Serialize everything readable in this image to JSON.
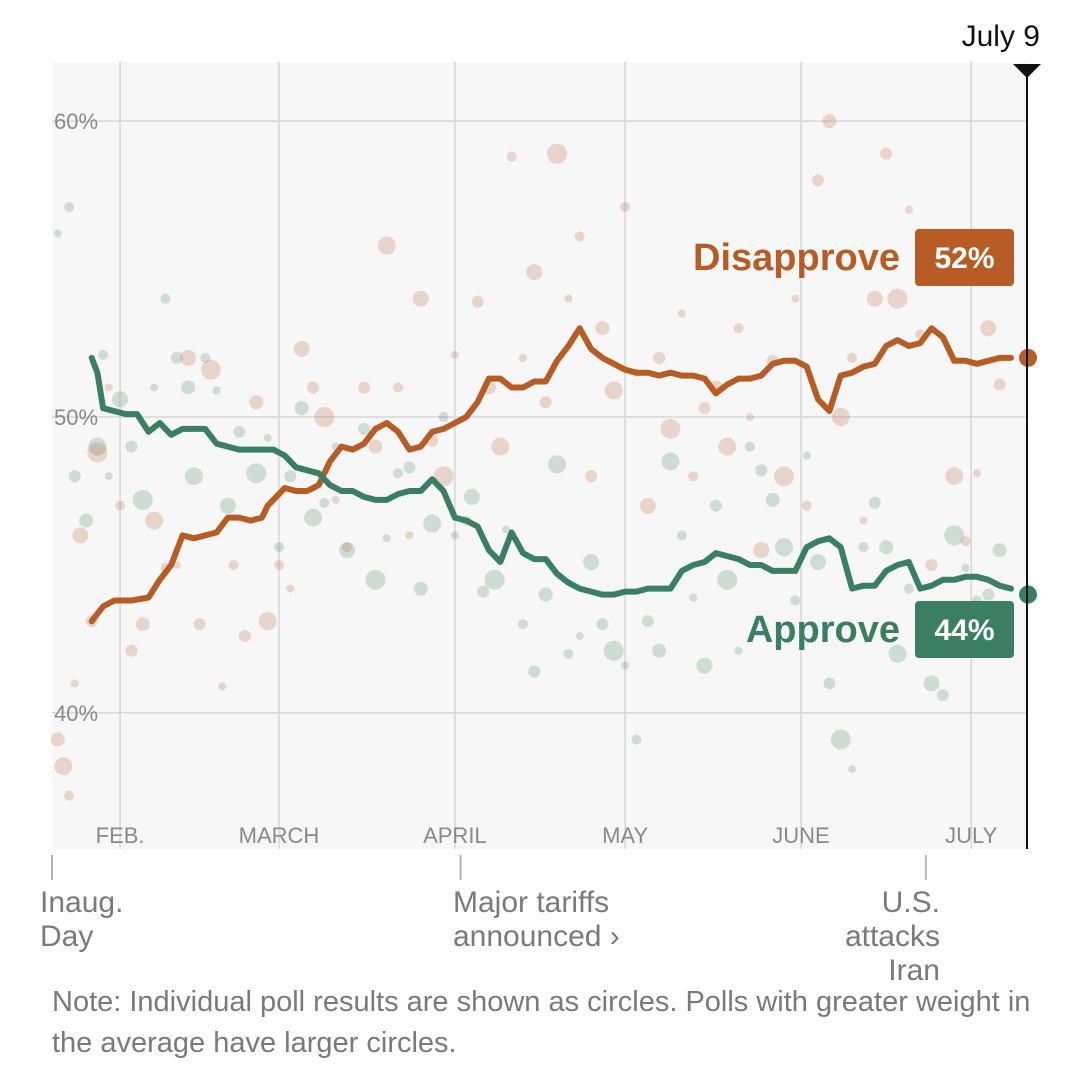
{
  "chart_data": {
    "type": "line",
    "date_marker": "July 9",
    "y_ticks": [
      "60%",
      "50%",
      "40%"
    ],
    "y_tick_values": [
      60,
      50,
      40
    ],
    "ylim": [
      35.4,
      62
    ],
    "x_tick_labels": [
      "FEB.",
      "MARCH",
      "APRIL",
      "MAY",
      "JUNE",
      "JULY"
    ],
    "x_tick_days": [
      12,
      40,
      71,
      101,
      132,
      162
    ],
    "x_range_days": [
      0,
      172
    ],
    "grid": true,
    "colors": {
      "approve": "#3a7f61",
      "disapprove": "#b85c26"
    },
    "series": [
      {
        "name": "Disapprove",
        "key": "disapprove",
        "end_value": 52,
        "label": "52%",
        "points": [
          [
            7,
            43.1
          ],
          [
            9,
            43.6
          ],
          [
            11,
            43.8
          ],
          [
            14,
            43.8
          ],
          [
            17,
            43.9
          ],
          [
            19,
            44.5
          ],
          [
            21,
            45.0
          ],
          [
            23,
            46.0
          ],
          [
            25,
            45.9
          ],
          [
            27,
            46.0
          ],
          [
            29,
            46.1
          ],
          [
            31,
            46.6
          ],
          [
            33,
            46.6
          ],
          [
            35,
            46.5
          ],
          [
            37,
            46.6
          ],
          [
            38,
            47.0
          ],
          [
            41,
            47.6
          ],
          [
            43,
            47.5
          ],
          [
            45,
            47.5
          ],
          [
            47,
            47.7
          ],
          [
            49,
            48.5
          ],
          [
            51,
            49.0
          ],
          [
            53,
            48.9
          ],
          [
            55,
            49.1
          ],
          [
            57,
            49.6
          ],
          [
            59,
            49.8
          ],
          [
            61,
            49.5
          ],
          [
            63,
            48.9
          ],
          [
            65,
            49.0
          ],
          [
            67,
            49.5
          ],
          [
            69,
            49.6
          ],
          [
            71,
            49.8
          ],
          [
            73,
            50.0
          ],
          [
            75,
            50.5
          ],
          [
            77,
            51.3
          ],
          [
            79,
            51.3
          ],
          [
            81,
            51.0
          ],
          [
            83,
            51.0
          ],
          [
            85,
            51.2
          ],
          [
            87,
            51.2
          ],
          [
            89,
            51.9
          ],
          [
            91,
            52.4
          ],
          [
            93,
            53.0
          ],
          [
            95,
            52.3
          ],
          [
            97,
            52.0
          ],
          [
            99,
            51.8
          ],
          [
            101,
            51.6
          ],
          [
            103,
            51.5
          ],
          [
            105,
            51.5
          ],
          [
            107,
            51.4
          ],
          [
            109,
            51.5
          ],
          [
            111,
            51.4
          ],
          [
            113,
            51.4
          ],
          [
            115,
            51.3
          ],
          [
            117,
            50.8
          ],
          [
            119,
            51.1
          ],
          [
            121,
            51.3
          ],
          [
            123,
            51.3
          ],
          [
            125,
            51.4
          ],
          [
            127,
            51.8
          ],
          [
            129,
            51.9
          ],
          [
            131,
            51.9
          ],
          [
            133,
            51.7
          ],
          [
            135,
            50.6
          ],
          [
            137,
            50.2
          ],
          [
            139,
            51.4
          ],
          [
            141,
            51.5
          ],
          [
            143,
            51.7
          ],
          [
            145,
            51.8
          ],
          [
            147,
            52.4
          ],
          [
            149,
            52.6
          ],
          [
            151,
            52.4
          ],
          [
            153,
            52.5
          ],
          [
            155,
            53.0
          ],
          [
            157,
            52.7
          ],
          [
            159,
            51.9
          ],
          [
            161,
            51.9
          ],
          [
            163,
            51.8
          ],
          [
            165,
            51.9
          ],
          [
            167,
            52.0
          ],
          [
            169,
            52.0
          ]
        ]
      },
      {
        "name": "Approve",
        "key": "approve",
        "end_value": 44,
        "label": "44%",
        "points": [
          [
            7,
            52.0
          ],
          [
            8,
            51.5
          ],
          [
            9,
            50.3
          ],
          [
            11,
            50.2
          ],
          [
            13,
            50.1
          ],
          [
            15,
            50.1
          ],
          [
            17,
            49.5
          ],
          [
            19,
            49.8
          ],
          [
            21,
            49.4
          ],
          [
            23,
            49.6
          ],
          [
            25,
            49.6
          ],
          [
            27,
            49.6
          ],
          [
            29,
            49.1
          ],
          [
            31,
            49.0
          ],
          [
            33,
            48.9
          ],
          [
            35,
            48.9
          ],
          [
            37,
            48.9
          ],
          [
            39,
            48.9
          ],
          [
            41,
            48.7
          ],
          [
            43,
            48.3
          ],
          [
            45,
            48.2
          ],
          [
            47,
            48.1
          ],
          [
            49,
            47.7
          ],
          [
            51,
            47.5
          ],
          [
            53,
            47.5
          ],
          [
            55,
            47.3
          ],
          [
            57,
            47.2
          ],
          [
            59,
            47.2
          ],
          [
            61,
            47.4
          ],
          [
            63,
            47.5
          ],
          [
            65,
            47.5
          ],
          [
            67,
            47.9
          ],
          [
            69,
            47.5
          ],
          [
            71,
            46.6
          ],
          [
            73,
            46.5
          ],
          [
            75,
            46.3
          ],
          [
            77,
            45.5
          ],
          [
            79,
            45.1
          ],
          [
            81,
            46.1
          ],
          [
            83,
            45.4
          ],
          [
            85,
            45.2
          ],
          [
            87,
            45.2
          ],
          [
            89,
            44.7
          ],
          [
            91,
            44.4
          ],
          [
            93,
            44.2
          ],
          [
            95,
            44.1
          ],
          [
            97,
            44.0
          ],
          [
            99,
            44.0
          ],
          [
            101,
            44.1
          ],
          [
            103,
            44.1
          ],
          [
            105,
            44.2
          ],
          [
            107,
            44.2
          ],
          [
            109,
            44.2
          ],
          [
            111,
            44.8
          ],
          [
            113,
            45.0
          ],
          [
            115,
            45.1
          ],
          [
            117,
            45.4
          ],
          [
            119,
            45.3
          ],
          [
            121,
            45.2
          ],
          [
            123,
            45.0
          ],
          [
            125,
            45.0
          ],
          [
            127,
            44.8
          ],
          [
            129,
            44.8
          ],
          [
            131,
            44.8
          ],
          [
            133,
            45.6
          ],
          [
            135,
            45.8
          ],
          [
            137,
            45.9
          ],
          [
            139,
            45.6
          ],
          [
            141,
            44.2
          ],
          [
            143,
            44.3
          ],
          [
            145,
            44.3
          ],
          [
            147,
            44.8
          ],
          [
            149,
            45.0
          ],
          [
            151,
            45.1
          ],
          [
            153,
            44.2
          ],
          [
            155,
            44.3
          ],
          [
            157,
            44.5
          ],
          [
            159,
            44.5
          ],
          [
            161,
            44.6
          ],
          [
            163,
            44.6
          ],
          [
            165,
            44.5
          ],
          [
            167,
            44.3
          ],
          [
            169,
            44.2
          ]
        ]
      }
    ],
    "approve_polls": [
      [
        1,
        56.2
      ],
      [
        3,
        57.1
      ],
      [
        4,
        48.0
      ],
      [
        6,
        46.5
      ],
      [
        8,
        49.0
      ],
      [
        9,
        52.1
      ],
      [
        10,
        48.0
      ],
      [
        12,
        50.6
      ],
      [
        14,
        49.0
      ],
      [
        16,
        47.2
      ],
      [
        18,
        51.0
      ],
      [
        20,
        54.0
      ],
      [
        22,
        52.0
      ],
      [
        24,
        51.0
      ],
      [
        25,
        48.0
      ],
      [
        27,
        52.0
      ],
      [
        29,
        50.9
      ],
      [
        31,
        47.0
      ],
      [
        33,
        49.5
      ],
      [
        36,
        48.1
      ],
      [
        38,
        49.3
      ],
      [
        40,
        45.6
      ],
      [
        42,
        48.0
      ],
      [
        44,
        50.3
      ],
      [
        46,
        46.6
      ],
      [
        48,
        47.1
      ],
      [
        50,
        49.0
      ],
      [
        52,
        45.5
      ],
      [
        55,
        49.6
      ],
      [
        57,
        44.5
      ],
      [
        59,
        45.9
      ],
      [
        61,
        48.1
      ],
      [
        63,
        48.3
      ],
      [
        65,
        44.2
      ],
      [
        67,
        46.4
      ],
      [
        69,
        50.0
      ],
      [
        71,
        46.0
      ],
      [
        74,
        47.3
      ],
      [
        76,
        44.1
      ],
      [
        78,
        44.5
      ],
      [
        80,
        46.2
      ],
      [
        83,
        43.0
      ],
      [
        85,
        41.4
      ],
      [
        87,
        44.0
      ],
      [
        89,
        48.4
      ],
      [
        91,
        42.0
      ],
      [
        93,
        42.6
      ],
      [
        95,
        45.1
      ],
      [
        97,
        43.0
      ],
      [
        99,
        42.1
      ],
      [
        101,
        41.6
      ],
      [
        103,
        39.1
      ],
      [
        105,
        43.1
      ],
      [
        107,
        42.1
      ],
      [
        109,
        48.5
      ],
      [
        111,
        46.0
      ],
      [
        113,
        43.9
      ],
      [
        115,
        41.6
      ],
      [
        117,
        47.0
      ],
      [
        119,
        44.5
      ],
      [
        121,
        42.1
      ],
      [
        123,
        49.0
      ],
      [
        125,
        48.2
      ],
      [
        127,
        47.2
      ],
      [
        129,
        45.6
      ],
      [
        131,
        43.8
      ],
      [
        133,
        48.7
      ],
      [
        135,
        45.1
      ],
      [
        137,
        41.0
      ],
      [
        139,
        39.1
      ],
      [
        141,
        38.1
      ],
      [
        143,
        45.6
      ],
      [
        145,
        47.1
      ],
      [
        147,
        45.6
      ],
      [
        149,
        42.0
      ],
      [
        151,
        44.2
      ],
      [
        153,
        43.0
      ],
      [
        155,
        41.0
      ],
      [
        157,
        40.6
      ],
      [
        159,
        46.0
      ],
      [
        161,
        44.9
      ],
      [
        163,
        43.8
      ],
      [
        165,
        44.0
      ],
      [
        167,
        45.5
      ]
    ],
    "disapprove_polls": [
      [
        1,
        39.1
      ],
      [
        2,
        38.2
      ],
      [
        3,
        37.2
      ],
      [
        4,
        41.0
      ],
      [
        5,
        46.0
      ],
      [
        7,
        43.1
      ],
      [
        8,
        48.8
      ],
      [
        10,
        51.0
      ],
      [
        12,
        47.0
      ],
      [
        14,
        42.1
      ],
      [
        16,
        43.0
      ],
      [
        18,
        46.5
      ],
      [
        20,
        44.9
      ],
      [
        22,
        45.0
      ],
      [
        24,
        52.0
      ],
      [
        26,
        43.0
      ],
      [
        28,
        51.6
      ],
      [
        30,
        40.9
      ],
      [
        32,
        45.0
      ],
      [
        34,
        42.6
      ],
      [
        36,
        50.5
      ],
      [
        38,
        43.1
      ],
      [
        40,
        45.0
      ],
      [
        42,
        44.2
      ],
      [
        44,
        52.3
      ],
      [
        46,
        51.0
      ],
      [
        48,
        50.0
      ],
      [
        50,
        47.2
      ],
      [
        52,
        45.6
      ],
      [
        55,
        51.0
      ],
      [
        57,
        49.0
      ],
      [
        59,
        55.8
      ],
      [
        61,
        51.0
      ],
      [
        63,
        46.0
      ],
      [
        65,
        54.0
      ],
      [
        67,
        49.2
      ],
      [
        69,
        48.0
      ],
      [
        71,
        52.1
      ],
      [
        73,
        46.5
      ],
      [
        75,
        53.9
      ],
      [
        77,
        51.0
      ],
      [
        79,
        49.0
      ],
      [
        81,
        58.8
      ],
      [
        83,
        52.0
      ],
      [
        85,
        54.9
      ],
      [
        87,
        50.5
      ],
      [
        89,
        58.9
      ],
      [
        91,
        54.0
      ],
      [
        93,
        56.1
      ],
      [
        95,
        48.0
      ],
      [
        97,
        53.0
      ],
      [
        99,
        50.9
      ],
      [
        101,
        57.1
      ],
      [
        103,
        51.5
      ],
      [
        105,
        47.0
      ],
      [
        107,
        52.0
      ],
      [
        109,
        49.6
      ],
      [
        111,
        53.5
      ],
      [
        113,
        48.0
      ],
      [
        115,
        50.3
      ],
      [
        117,
        51.0
      ],
      [
        119,
        49.0
      ],
      [
        121,
        53.0
      ],
      [
        123,
        50.0
      ],
      [
        125,
        45.5
      ],
      [
        127,
        51.9
      ],
      [
        129,
        48.0
      ],
      [
        131,
        54.0
      ],
      [
        133,
        47.0
      ],
      [
        135,
        58.0
      ],
      [
        137,
        60.0
      ],
      [
        139,
        50.0
      ],
      [
        141,
        52.0
      ],
      [
        143,
        46.5
      ],
      [
        145,
        54.0
      ],
      [
        147,
        58.9
      ],
      [
        149,
        54.0
      ],
      [
        151,
        57.0
      ],
      [
        153,
        52.8
      ],
      [
        155,
        45.0
      ],
      [
        157,
        55.0
      ],
      [
        159,
        48.0
      ],
      [
        161,
        45.8
      ],
      [
        163,
        48.1
      ],
      [
        165,
        53.0
      ],
      [
        167,
        51.1
      ]
    ],
    "annotations": [
      "Inaug.\nDay",
      "Major tariffs\nannounced ›",
      "U.S.\nattacks\nIran"
    ],
    "annotation_days": [
      0,
      72,
      154
    ],
    "note": "Note: Individual poll results are shown as circles. Polls with greater weight in the average have larger circles."
  }
}
